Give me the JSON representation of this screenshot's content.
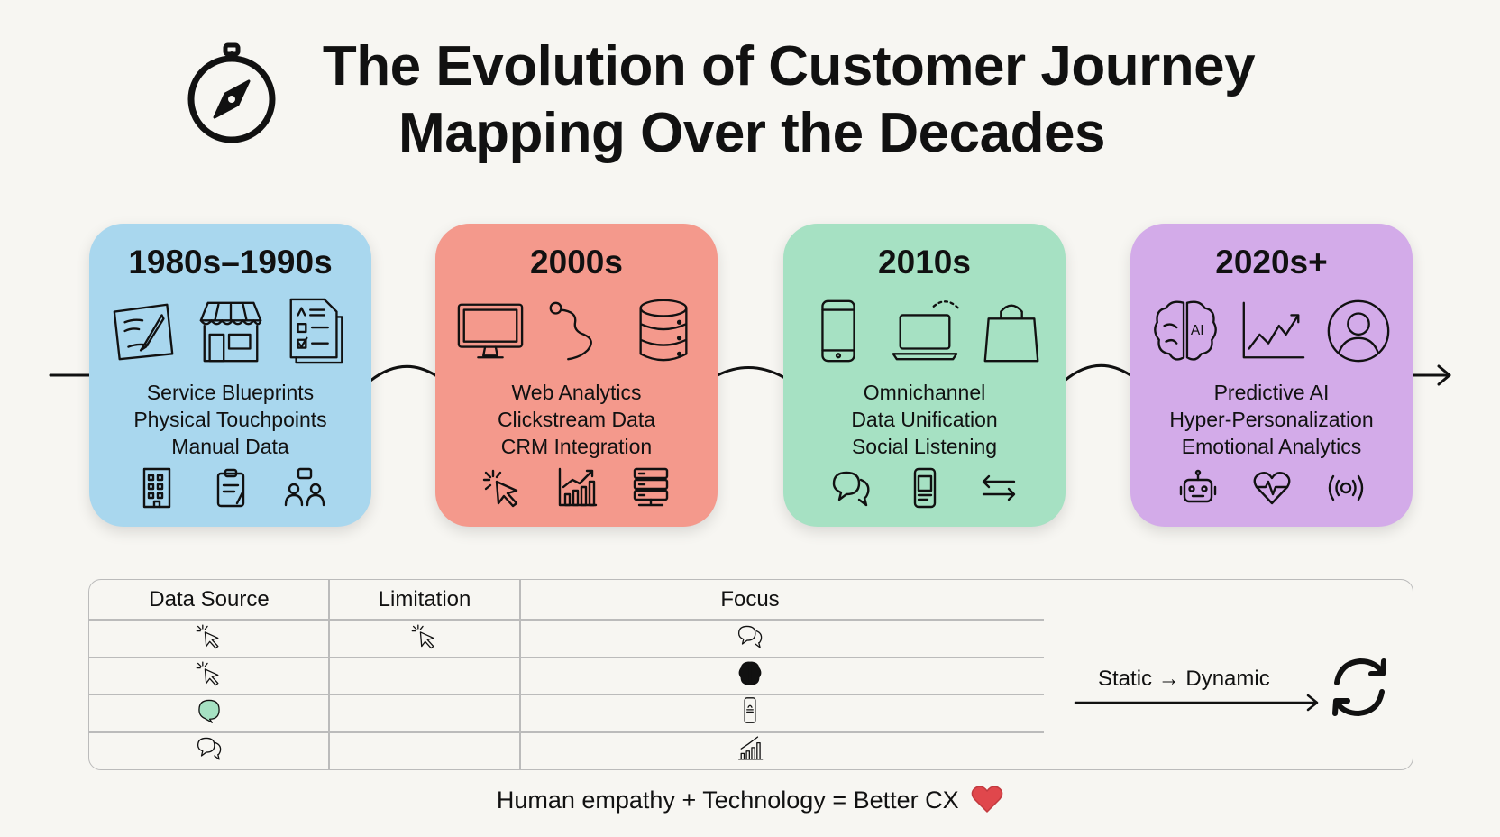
{
  "header": {
    "title_line1": "The Evolution of Customer Journey",
    "title_line2": "Mapping Over the Decades",
    "icon": "compass-icon"
  },
  "eras": [
    {
      "year": "1980s–1990s",
      "color": "#a9d7ee",
      "items": [
        "Service Blueprints",
        "Physical Touchpoints",
        "Manual Data"
      ],
      "top_icons": [
        "handwritten-note-icon",
        "storefront-icon",
        "checklist-document-icon"
      ],
      "bottom_icons": [
        "building-icon",
        "clipboard-icon",
        "people-conversation-icon"
      ]
    },
    {
      "year": "2000s",
      "color": "#f4998c",
      "items": [
        "Web Analytics",
        "Clickstream Data",
        "CRM Integration"
      ],
      "top_icons": [
        "desktop-monitor-icon",
        "path-trail-icon",
        "database-icon"
      ],
      "bottom_icons": [
        "cursor-click-icon",
        "bar-chart-icon",
        "server-icon"
      ]
    },
    {
      "year": "2010s",
      "color": "#a6e1c3",
      "items": [
        "Omnichannel",
        "Data Unification",
        "Social Listening"
      ],
      "top_icons": [
        "smartphone-icon",
        "laptop-icon",
        "shopping-bag-icon"
      ],
      "bottom_icons": [
        "chat-bubbles-icon",
        "mobile-app-icon",
        "exchange-arrows-icon"
      ]
    },
    {
      "year": "2020s+",
      "color": "#d3abe9",
      "items": [
        "Predictive AI",
        "Hyper-Personalization",
        "Emotional Analytics"
      ],
      "top_icons": [
        "ai-brain-icon",
        "trend-line-icon",
        "user-avatar-icon"
      ],
      "bottom_icons": [
        "robot-icon",
        "heartbeat-icon",
        "signal-waves-icon"
      ]
    }
  ],
  "table": {
    "headers": [
      "Data Source",
      "Limitation",
      "Focus"
    ],
    "rows": [
      [
        "cursor-click-icon",
        "cursor-click-icon",
        "chat-bubbles-icon"
      ],
      [
        "cursor-click-icon",
        "",
        "brain-icon"
      ],
      [
        "chat-bubble-filled-icon",
        "",
        "mobile-app-icon"
      ],
      [
        "chat-bubbles-icon",
        "",
        "bar-chart-icon"
      ]
    ],
    "side_label": "Static → Dynamic",
    "side_icon": "refresh-cycle-icon",
    "bubble_color": "#a6e1c3"
  },
  "footer": {
    "text": "Human empathy + Technology = Better CX",
    "icon": "heart-icon",
    "heart_color": "#e0474c"
  }
}
